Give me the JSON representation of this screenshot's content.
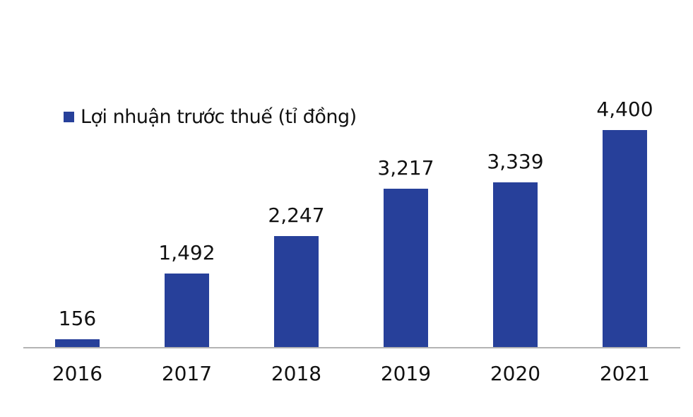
{
  "chart_data": {
    "type": "bar",
    "title": "",
    "xlabel": "",
    "ylabel": "",
    "categories": [
      "2016",
      "2017",
      "2018",
      "2019",
      "2020",
      "2021"
    ],
    "series": [
      {
        "name": "Lợi nhuận trước thuế (tỉ đồng)",
        "values": [
          156,
          1492,
          2247,
          3217,
          3339,
          4400
        ],
        "labels": [
          "156",
          "1,492",
          "2,247",
          "3,217",
          "3,339",
          "4,400"
        ],
        "color": "#27409a"
      }
    ],
    "ylim": [
      0,
      4400
    ],
    "grid": false,
    "y_axis_visible": false,
    "data_labels": true,
    "legend_position": "top-left"
  },
  "legend": {
    "label": "Lợi nhuận trước thuế (tỉ đồng)",
    "color": "#27409a"
  },
  "colors": {
    "bar": "#27409a",
    "axis": "#b3b3b3",
    "text": "#111111"
  }
}
